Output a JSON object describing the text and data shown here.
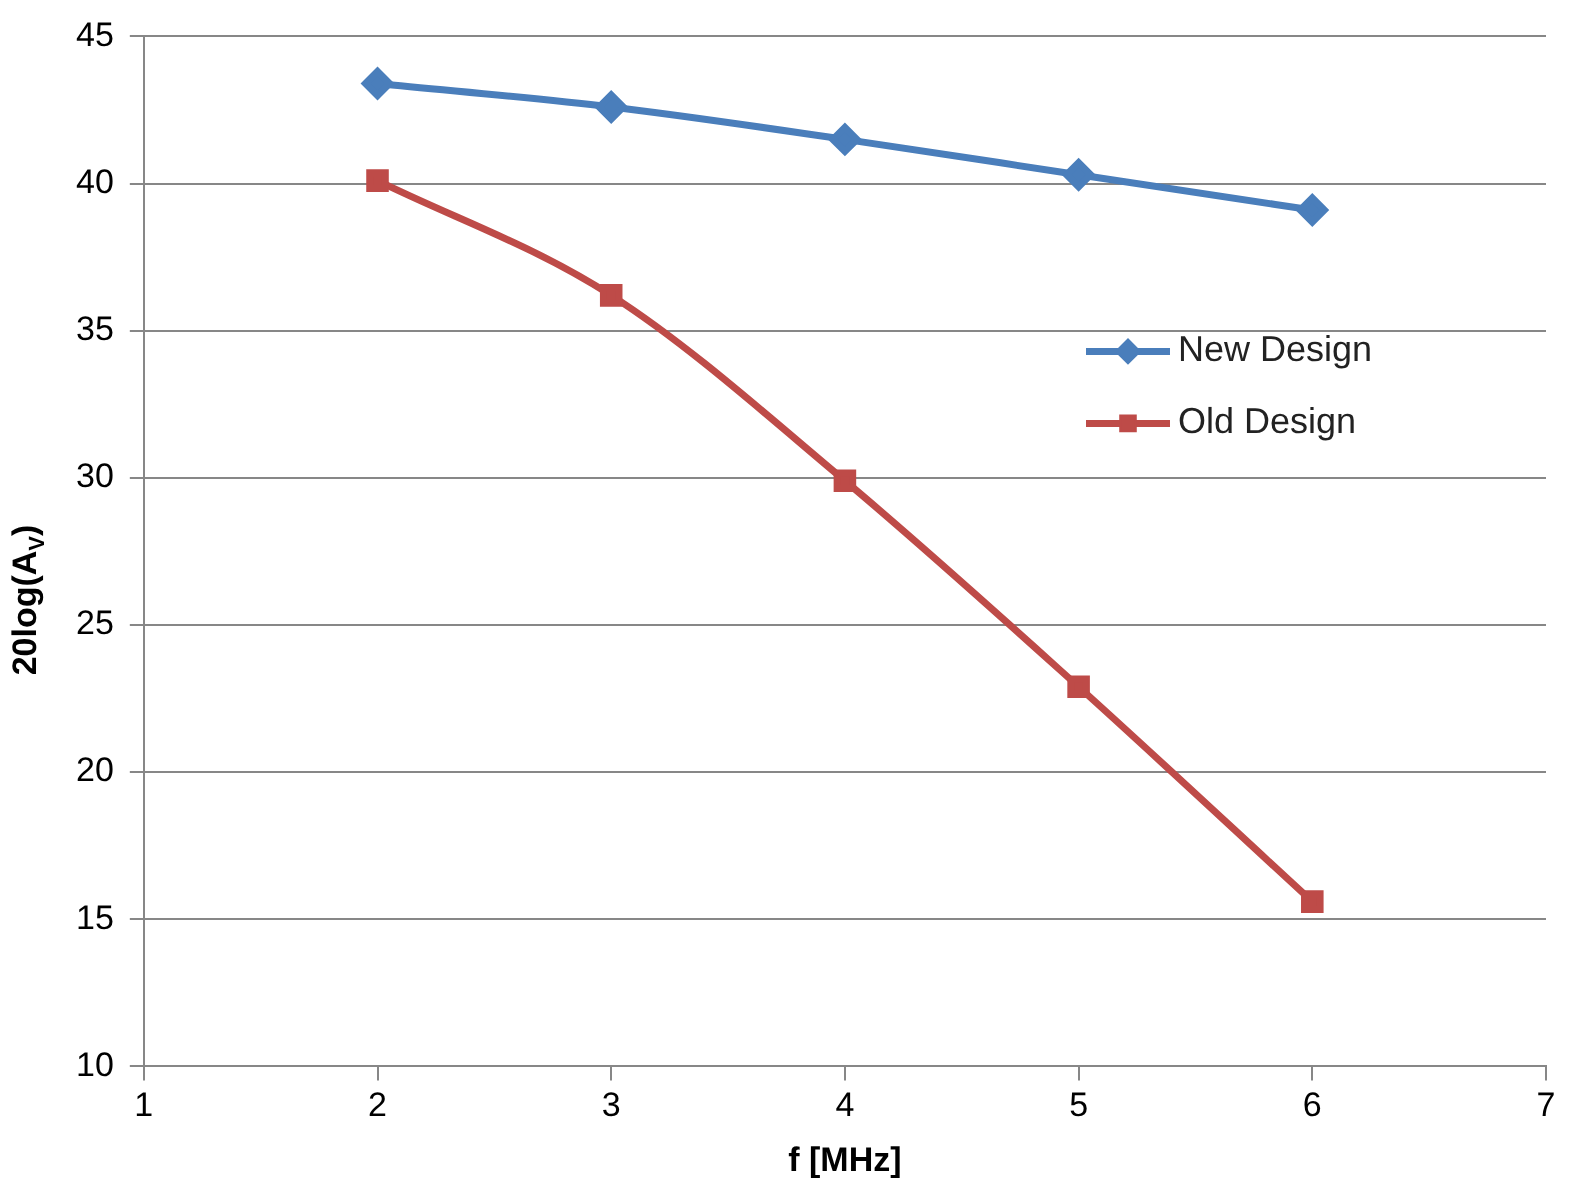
{
  "chart_data": {
    "type": "line",
    "xlabel": "f [MHz]",
    "ylabel": "20log(A$_{V}$)",
    "x": [
      2,
      3,
      4,
      5,
      6
    ],
    "series": [
      {
        "name": "New Design",
        "color": "#4a7ebb",
        "marker": "diamond",
        "values": [
          43.4,
          42.6,
          41.5,
          40.3,
          39.1
        ]
      },
      {
        "name": "Old Design",
        "color": "#be4b48",
        "marker": "square",
        "values": [
          40.1,
          36.2,
          29.9,
          22.9,
          15.6
        ]
      }
    ],
    "xlim": [
      1,
      7
    ],
    "xticks": [
      1,
      2,
      3,
      4,
      5,
      6,
      7
    ],
    "ylim": [
      10,
      45
    ],
    "yticks": [
      10,
      15,
      20,
      25,
      30,
      35,
      40,
      45
    ],
    "grid": "y",
    "legend": "right"
  }
}
